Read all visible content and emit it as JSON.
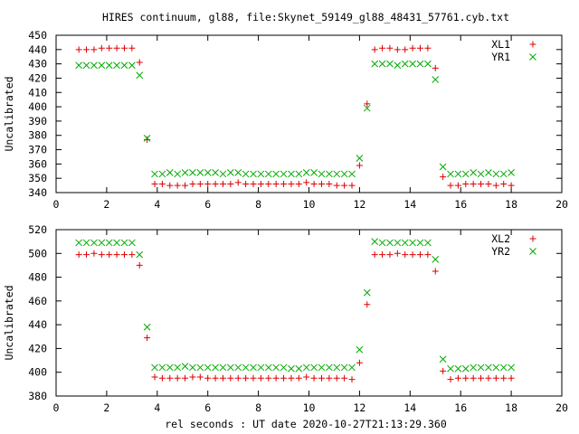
{
  "chart_data": [
    {
      "type": "scatter",
      "title": "HIRES continuum, gl88, file:Skynet_59149_gl88_48431_57761.cyb.txt",
      "xlabel": "",
      "ylabel": "Uncalibrated",
      "xlim": [
        0,
        20
      ],
      "ylim": [
        340,
        450
      ],
      "x_ticks": [
        "0",
        "2",
        "4",
        "6",
        "8",
        "10",
        "12",
        "14",
        "16",
        "18",
        "20"
      ],
      "y_ticks": [
        "340",
        "350",
        "360",
        "370",
        "380",
        "390",
        "400",
        "410",
        "420",
        "430",
        "440",
        "450"
      ],
      "grid": false,
      "legend": "top-right",
      "series": [
        {
          "name": "XL1",
          "marker": "plus",
          "color": "#dd0000",
          "x": [
            0.9,
            1.2,
            1.5,
            1.8,
            2.1,
            2.4,
            2.7,
            3.0,
            3.3,
            3.6,
            3.9,
            4.2,
            4.5,
            4.8,
            5.1,
            5.4,
            5.7,
            6.0,
            6.3,
            6.6,
            6.9,
            7.2,
            7.5,
            7.8,
            8.1,
            8.4,
            8.7,
            9.0,
            9.3,
            9.6,
            9.9,
            10.2,
            10.5,
            10.8,
            11.1,
            11.4,
            11.7,
            12.0,
            12.3,
            12.6,
            12.9,
            13.2,
            13.5,
            13.8,
            14.1,
            14.4,
            14.7,
            15.0,
            15.3,
            15.6,
            15.9,
            16.2,
            16.5,
            16.8,
            17.1,
            17.4,
            17.7,
            18.0
          ],
          "y": [
            440,
            440,
            440,
            441,
            441,
            441,
            441,
            441,
            431,
            377,
            346,
            346,
            345,
            345,
            345,
            346,
            346,
            346,
            346,
            346,
            346,
            347,
            346,
            346,
            346,
            346,
            346,
            346,
            346,
            346,
            347,
            346,
            346,
            346,
            345,
            345,
            345,
            359,
            402,
            440,
            441,
            441,
            440,
            440,
            441,
            441,
            441,
            427,
            351,
            345,
            345,
            346,
            346,
            346,
            346,
            345,
            346,
            345
          ]
        },
        {
          "name": "YR1",
          "marker": "cross",
          "color": "#00aa00",
          "x": [
            0.9,
            1.2,
            1.5,
            1.8,
            2.1,
            2.4,
            2.7,
            3.0,
            3.3,
            3.6,
            3.9,
            4.2,
            4.5,
            4.8,
            5.1,
            5.4,
            5.7,
            6.0,
            6.3,
            6.6,
            6.9,
            7.2,
            7.5,
            7.8,
            8.1,
            8.4,
            8.7,
            9.0,
            9.3,
            9.6,
            9.9,
            10.2,
            10.5,
            10.8,
            11.1,
            11.4,
            11.7,
            12.0,
            12.3,
            12.6,
            12.9,
            13.2,
            13.5,
            13.8,
            14.1,
            14.4,
            14.7,
            15.0,
            15.3,
            15.6,
            15.9,
            16.2,
            16.5,
            16.8,
            17.1,
            17.4,
            17.7,
            18.0
          ],
          "y": [
            429,
            429,
            429,
            429,
            429,
            429,
            429,
            429,
            422,
            378,
            353,
            353,
            354,
            353,
            354,
            354,
            354,
            354,
            354,
            353,
            354,
            354,
            353,
            353,
            353,
            353,
            353,
            353,
            353,
            353,
            354,
            354,
            353,
            353,
            353,
            353,
            353,
            364,
            399,
            430,
            430,
            430,
            429,
            430,
            430,
            430,
            430,
            419,
            358,
            353,
            353,
            353,
            354,
            353,
            354,
            353,
            353,
            354
          ]
        }
      ]
    },
    {
      "type": "scatter",
      "title": "",
      "xlabel": "rel seconds : UT date 2020-10-27T21:13:29.360",
      "ylabel": "Uncalibrated",
      "xlim": [
        0,
        20
      ],
      "ylim": [
        380,
        520
      ],
      "x_ticks": [
        "0",
        "2",
        "4",
        "6",
        "8",
        "10",
        "12",
        "14",
        "16",
        "18",
        "20"
      ],
      "y_ticks": [
        "380",
        "400",
        "420",
        "440",
        "460",
        "480",
        "500",
        "520"
      ],
      "grid": false,
      "legend": "top-right",
      "series": [
        {
          "name": "XL2",
          "marker": "plus",
          "color": "#dd0000",
          "x": [
            0.9,
            1.2,
            1.5,
            1.8,
            2.1,
            2.4,
            2.7,
            3.0,
            3.3,
            3.6,
            3.9,
            4.2,
            4.5,
            4.8,
            5.1,
            5.4,
            5.7,
            6.0,
            6.3,
            6.6,
            6.9,
            7.2,
            7.5,
            7.8,
            8.1,
            8.4,
            8.7,
            9.0,
            9.3,
            9.6,
            9.9,
            10.2,
            10.5,
            10.8,
            11.1,
            11.4,
            11.7,
            12.0,
            12.3,
            12.6,
            12.9,
            13.2,
            13.5,
            13.8,
            14.1,
            14.4,
            14.7,
            15.0,
            15.3,
            15.6,
            15.9,
            16.2,
            16.5,
            16.8,
            17.1,
            17.4,
            17.7,
            18.0
          ],
          "y": [
            499,
            499,
            500,
            499,
            499,
            499,
            499,
            499,
            490,
            429,
            396,
            395,
            395,
            395,
            395,
            396,
            396,
            395,
            395,
            395,
            395,
            395,
            395,
            395,
            395,
            395,
            395,
            395,
            395,
            395,
            396,
            395,
            395,
            395,
            395,
            395,
            394,
            408,
            457,
            499,
            499,
            499,
            500,
            499,
            499,
            499,
            499,
            485,
            401,
            394,
            395,
            395,
            395,
            395,
            395,
            395,
            395,
            395
          ]
        },
        {
          "name": "YR2",
          "marker": "cross",
          "color": "#00aa00",
          "x": [
            0.9,
            1.2,
            1.5,
            1.8,
            2.1,
            2.4,
            2.7,
            3.0,
            3.3,
            3.6,
            3.9,
            4.2,
            4.5,
            4.8,
            5.1,
            5.4,
            5.7,
            6.0,
            6.3,
            6.6,
            6.9,
            7.2,
            7.5,
            7.8,
            8.1,
            8.4,
            8.7,
            9.0,
            9.3,
            9.6,
            9.9,
            10.2,
            10.5,
            10.8,
            11.1,
            11.4,
            11.7,
            12.0,
            12.3,
            12.6,
            12.9,
            13.2,
            13.5,
            13.8,
            14.1,
            14.4,
            14.7,
            15.0,
            15.3,
            15.6,
            15.9,
            16.2,
            16.5,
            16.8,
            17.1,
            17.4,
            17.7,
            18.0
          ],
          "y": [
            509,
            509,
            509,
            509,
            509,
            509,
            509,
            509,
            499,
            438,
            404,
            404,
            404,
            404,
            405,
            404,
            404,
            404,
            404,
            404,
            404,
            404,
            404,
            404,
            404,
            404,
            404,
            404,
            403,
            403,
            404,
            404,
            404,
            404,
            404,
            404,
            404,
            419,
            467,
            510,
            509,
            509,
            509,
            509,
            509,
            509,
            509,
            495,
            411,
            403,
            403,
            403,
            404,
            404,
            404,
            404,
            404,
            404
          ]
        }
      ]
    }
  ]
}
